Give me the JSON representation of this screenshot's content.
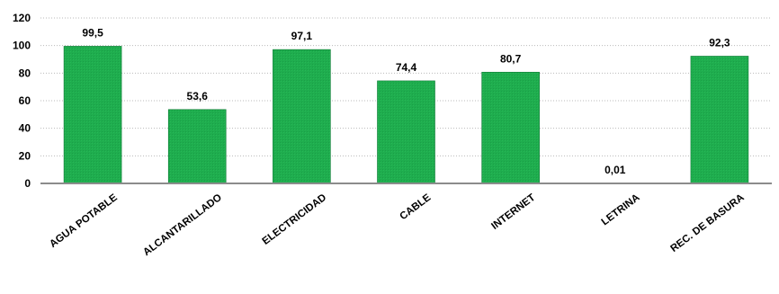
{
  "chart_data": {
    "type": "bar",
    "categories": [
      "AGUA POTABLE",
      "ALCANTARILLADO",
      "ELECTRICIDAD",
      "CABLE",
      "INTERNET",
      "LETRINA",
      "REC. DE BASURA"
    ],
    "values": [
      99.5,
      53.6,
      97.1,
      74.4,
      80.7,
      0.01,
      92.3
    ],
    "data_labels": [
      "99,5",
      "53,6",
      "97,1",
      "74,4",
      "80,7",
      "0,01",
      "92,3"
    ],
    "y_ticks": [
      "0",
      "20",
      "40",
      "60",
      "80",
      "100",
      "120"
    ],
    "ylim": [
      0,
      120
    ],
    "grid": true,
    "legend": "none",
    "title": "",
    "xlabel": "",
    "ylabel": "",
    "bar_color": "#1fad4e",
    "bar_border_color": "#0c7a34"
  }
}
